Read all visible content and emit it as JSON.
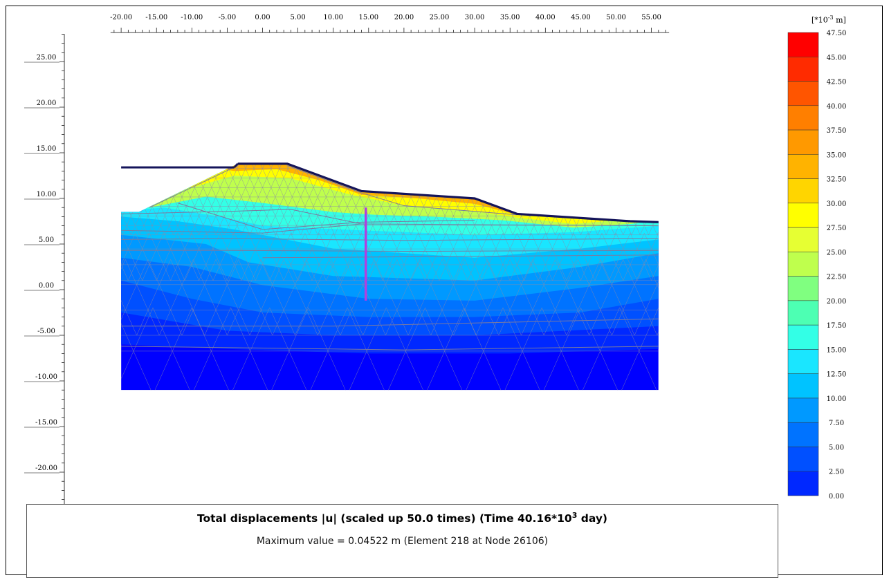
{
  "x_axis": {
    "tick_labels": [
      "-20.00",
      "-15.00",
      "-10.00",
      "-5.00",
      "0.00",
      "5.00",
      "10.00",
      "15.00",
      "20.00",
      "25.00",
      "30.00",
      "35.00",
      "40.00",
      "45.00",
      "50.00",
      "55.00"
    ],
    "tick_values": [
      -20,
      -15,
      -10,
      -5,
      0,
      5,
      10,
      15,
      20,
      25,
      30,
      35,
      40,
      45,
      50,
      55
    ]
  },
  "y_axis": {
    "tick_labels": [
      "25.00",
      "20.00",
      "15.00",
      "10.00",
      "5.00",
      "0.00",
      "-5.00",
      "-10.00",
      "-15.00",
      "-20.00"
    ],
    "tick_values": [
      25,
      20,
      15,
      10,
      5,
      0,
      -5,
      -10,
      -15,
      -20
    ]
  },
  "legend": {
    "unit_prefix": "[*10",
    "unit_exp": "-3",
    "unit_suffix": " m]",
    "values": [
      "47.50",
      "45.00",
      "42.50",
      "40.00",
      "37.50",
      "35.00",
      "32.50",
      "30.00",
      "27.50",
      "25.00",
      "22.50",
      "20.00",
      "17.50",
      "15.00",
      "12.50",
      "10.00",
      "7.50",
      "5.00",
      "2.50",
      "0.00"
    ],
    "colors": [
      "#ff0000",
      "#ff2b00",
      "#ff5500",
      "#ff7f00",
      "#ff9900",
      "#ffb300",
      "#ffd500",
      "#ffff00",
      "#e6ff33",
      "#bfff4d",
      "#80ff80",
      "#4dffb3",
      "#33ffe6",
      "#1ae6ff",
      "#00c3ff",
      "#0099ff",
      "#0073ff",
      "#0050ff",
      "#0028ff",
      "#0000ff"
    ]
  },
  "caption": {
    "title_main": "Total displacements |u| (scaled up 50.0 times) (Time 40.16*10",
    "title_exp": "3",
    "title_tail": " day)",
    "max_value": "Maximum value = 0.04522 m (Element 218 at Node 26106)"
  },
  "colors": {
    "surface_line": "#14145a",
    "structure_line": "#b040e0",
    "mesh": "#8a8aa8"
  },
  "chart_data": {
    "type": "heatmap",
    "title": "Total displacements |u| (scaled up 50.0 times) (Time 40.16*10^3 day)",
    "xlabel": "",
    "ylabel": "",
    "xlim": [
      -22,
      58
    ],
    "ylim": [
      -24,
      28
    ],
    "colorbar": {
      "unit": "[*10^-3 m]",
      "min": 0.0,
      "max": 47.5,
      "step": 2.5
    },
    "model_extent": {
      "x": [
        -20,
        56
      ],
      "y": [
        -11,
        14
      ]
    },
    "surface_profile": {
      "x": [
        -20,
        -17.5,
        -3.5,
        3.5,
        14,
        30,
        36,
        52,
        56
      ],
      "y": [
        8.5,
        8.5,
        13.8,
        13.8,
        10.8,
        10.0,
        8.3,
        7.5,
        7.4
      ]
    },
    "water_level": {
      "x": [
        -20,
        -4
      ],
      "y": [
        13.4,
        13.4
      ]
    },
    "wall": {
      "x": 14.6,
      "y": [
        -1.2,
        9.0
      ]
    },
    "max_value_m": 0.04522
  }
}
